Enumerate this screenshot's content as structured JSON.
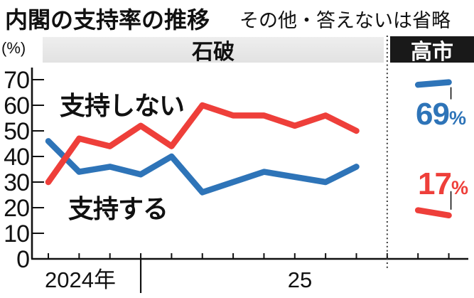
{
  "header": {
    "title": "内閣の支持率の推移",
    "subtitle": "その他・答えないは省略"
  },
  "colors": {
    "support_blue": "#2e74b8",
    "oppose_red": "#ee3f3a",
    "axis_black": "#111111",
    "header_bar_gray": "#e2e2e2",
    "takaichi_box_black": "#191919",
    "takaichi_box_text": "#ffffff"
  },
  "chart_data": {
    "type": "line",
    "title": "内閣の支持率の推移",
    "note": "その他・答えないは省略",
    "unit": "(%)",
    "ylim": [
      0,
      70
    ],
    "yticks": [
      0,
      10,
      20,
      30,
      40,
      50,
      60,
      70
    ],
    "x_year_labels": [
      "2024年",
      "25"
    ],
    "grid": false,
    "legend_position": "in-plot",
    "sections": [
      {
        "label": "石破",
        "series": [
          {
            "name": "支持する",
            "color": "#2e74b8",
            "values": [
              46,
              34,
              36,
              33,
              40,
              26,
              30,
              34,
              32,
              30,
              36
            ]
          },
          {
            "name": "支持しない",
            "color": "#ee3f3a",
            "values": [
              30,
              47,
              44,
              52,
              44,
              60,
              56,
              56,
              52,
              56,
              50
            ]
          }
        ]
      },
      {
        "label": "高市",
        "series": [
          {
            "name": "支持する",
            "color": "#2e74b8",
            "values": [
              68,
              69
            ],
            "end_value": "69",
            "end_sign": "%"
          },
          {
            "name": "支持しない",
            "color": "#ee3f3a",
            "values": [
              19,
              17
            ],
            "end_value": "17",
            "end_sign": "%"
          }
        ]
      }
    ]
  }
}
